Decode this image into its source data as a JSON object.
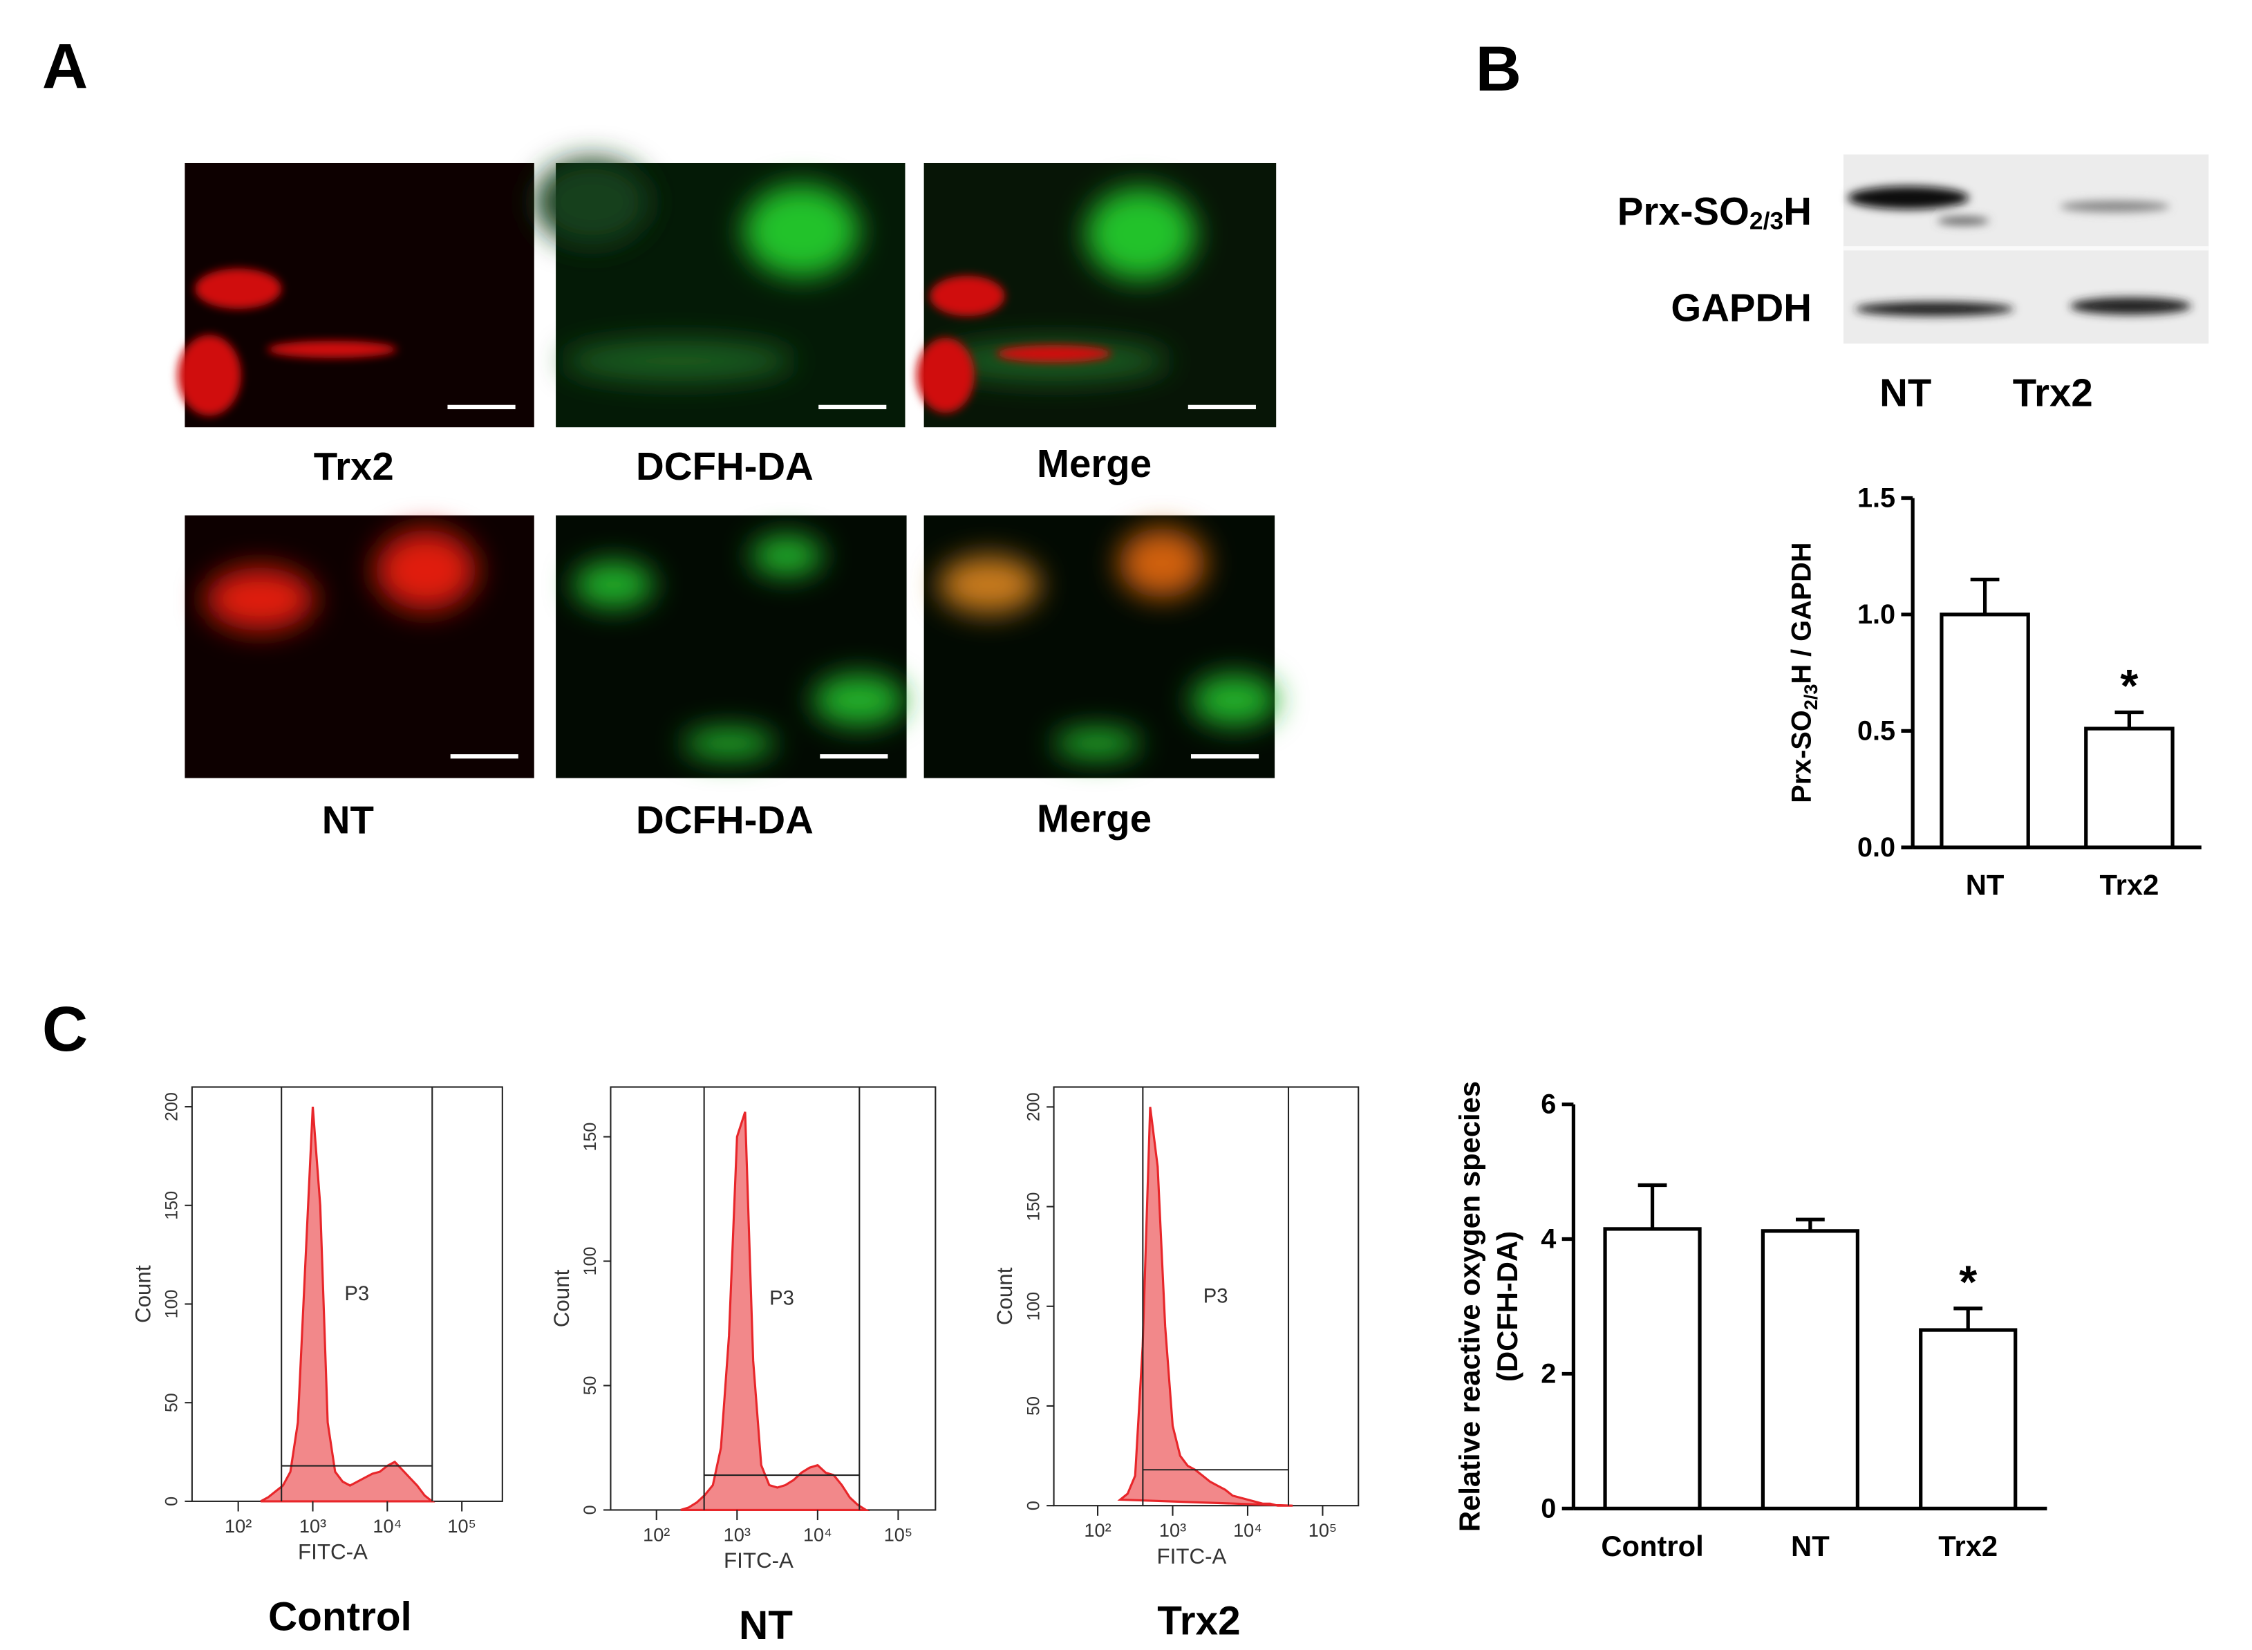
{
  "panels": [
    "A",
    "B",
    "C"
  ],
  "images": {
    "row1": [
      "Trx2",
      "DCFH-DA",
      "Merge"
    ],
    "row2": [
      "NT",
      "DCFH-DA",
      "Merge"
    ]
  },
  "blot": {
    "rows": [
      {
        "text": "Prx-SO",
        "sub": "2/3",
        "after": "H"
      },
      {
        "text": "GAPDH"
      }
    ],
    "lanes": [
      "NT",
      "Trx2"
    ]
  },
  "chart_data": [
    {
      "type": "area",
      "title": "Control",
      "xlabel": "FITC-A",
      "ylabel": "Count",
      "xscale": "log",
      "color": "#e8262a",
      "x": [
        200,
        251,
        316,
        398,
        501,
        631,
        794,
        1000,
        1259,
        1585,
        1995,
        2512,
        3162,
        3981,
        5012,
        6310,
        7943,
        10000,
        12589,
        15849,
        19953,
        25119,
        31623,
        39811
      ],
      "values": [
        0,
        2,
        5,
        8,
        15,
        40,
        120,
        200,
        150,
        40,
        15,
        10,
        8,
        10,
        12,
        14,
        15,
        18,
        20,
        16,
        12,
        8,
        3,
        0
      ],
      "xlim": [
        24,
        350000
      ],
      "xticks": [
        {
          "value": 100,
          "label": "10²"
        },
        {
          "value": 1000,
          "label": "10³"
        },
        {
          "value": 10000,
          "label": "10⁴"
        },
        {
          "value": 100000,
          "label": "10⁵"
        }
      ],
      "ylim": [
        0,
        210
      ],
      "yticks": [
        0,
        50,
        100,
        150,
        200
      ],
      "gate": {
        "label": "P3",
        "xrange": [
          380,
          40000
        ],
        "level": 18
      }
    },
    {
      "type": "area",
      "title": "NT",
      "xlabel": "FITC-A",
      "ylabel": "Count",
      "xscale": "log",
      "color": "#e8262a",
      "x": [
        200,
        251,
        316,
        398,
        501,
        631,
        794,
        1000,
        1259,
        1585,
        1995,
        2512,
        3162,
        3981,
        5012,
        6310,
        7943,
        10000,
        12589,
        15849,
        19953,
        25119,
        31623,
        39811
      ],
      "values": [
        0,
        1,
        3,
        6,
        10,
        25,
        70,
        150,
        160,
        60,
        18,
        10,
        9,
        10,
        12,
        15,
        17,
        18,
        15,
        14,
        10,
        5,
        2,
        0
      ],
      "xlim": [
        27,
        290000
      ],
      "xticks": [
        {
          "value": 100,
          "label": "10²"
        },
        {
          "value": 1000,
          "label": "10³"
        },
        {
          "value": 10000,
          "label": "10⁴"
        },
        {
          "value": 100000,
          "label": "10⁵"
        }
      ],
      "ylim": [
        0,
        170
      ],
      "yticks": [
        0,
        50,
        100,
        150
      ],
      "gate": {
        "label": "P3",
        "xrange": [
          390,
          33000
        ],
        "level": 14
      }
    },
    {
      "type": "area",
      "title": "Trx2",
      "xlabel": "FITC-A",
      "ylabel": "Count",
      "xscale": "log",
      "color": "#e8262a",
      "x": [
        200,
        251,
        316,
        398,
        501,
        631,
        794,
        1000,
        1259,
        1585,
        1995,
        2512,
        3162,
        3981,
        5012,
        6310,
        7943,
        10000,
        12589,
        15849,
        19953,
        25119,
        31623,
        39811
      ],
      "values": [
        3,
        6,
        15,
        80,
        200,
        170,
        90,
        40,
        25,
        20,
        18,
        15,
        12,
        10,
        8,
        5,
        4,
        3,
        2,
        1,
        1,
        0,
        0,
        0
      ],
      "xlim": [
        26,
        300000
      ],
      "xticks": [
        {
          "value": 100,
          "label": "10²"
        },
        {
          "value": 1000,
          "label": "10³"
        },
        {
          "value": 10000,
          "label": "10⁴"
        },
        {
          "value": 100000,
          "label": "10⁵"
        }
      ],
      "ylim": [
        0,
        210
      ],
      "yticks": [
        0,
        50,
        100,
        150,
        200
      ],
      "gate": {
        "label": "P3",
        "xrange": [
          400,
          35000
        ],
        "level": 18
      }
    },
    {
      "type": "bar",
      "ylabel": {
        "text": "Prx-SO",
        "sub": "2/3",
        "after": "H / GAPDH"
      },
      "categories": [
        "NT",
        "Trx2"
      ],
      "values": [
        1.0,
        0.51
      ],
      "errors": [
        0.15,
        0.07
      ],
      "significance": [
        null,
        "*"
      ],
      "ylim": [
        0,
        1.5
      ],
      "yticks": [
        {
          "value": 0,
          "label": "0.0"
        },
        {
          "value": 0.5,
          "label": "0.5"
        },
        {
          "value": 1,
          "label": "1.0"
        },
        {
          "value": 1.5,
          "label": "1.5"
        }
      ]
    },
    {
      "type": "bar",
      "ylabel": [
        "Relative reactive oxygen species",
        "(DCFH-DA)"
      ],
      "categories": [
        "Control",
        "NT",
        "Trx2"
      ],
      "values": [
        4.15,
        4.12,
        2.65
      ],
      "errors": [
        0.65,
        0.17,
        0.32
      ],
      "significance": [
        null,
        null,
        "*"
      ],
      "ylim": [
        0,
        6
      ],
      "yticks": [
        0,
        2,
        4,
        6
      ]
    }
  ]
}
